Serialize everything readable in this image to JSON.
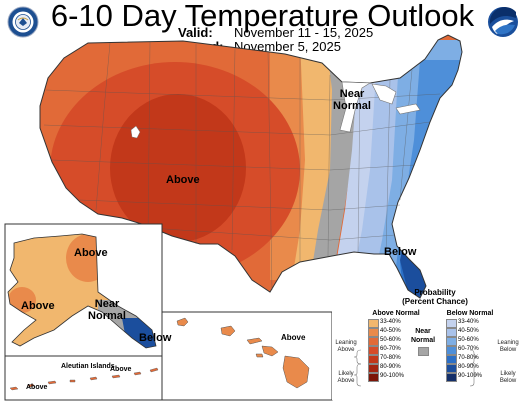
{
  "header": {
    "title": "6-10 Day Temperature Outlook",
    "valid_label": "Valid:",
    "valid_value": "November 11 - 15, 2025",
    "issued_label": "Issued:",
    "issued_value": "November 5, 2025"
  },
  "logos": {
    "left": "us-department-of-commerce-seal",
    "right": "noaa-logo"
  },
  "map_labels": {
    "conus_above": "Above",
    "conus_near_normal": "Near Normal",
    "conus_below": "Below",
    "alaska_above_north": "Above",
    "alaska_above_west": "Above",
    "alaska_near_normal": "Near Normal",
    "alaska_below": "Below",
    "aleutian_islands": "Aleutian Islands",
    "aleutian_above_west": "Above",
    "aleutian_above_east": "Above",
    "hawaii_above": "Above"
  },
  "legend": {
    "title": "Probability",
    "subtitle": "(Percent Chance)",
    "above_header": "Above Normal",
    "near_header": "Near Normal",
    "below_header": "Below Normal",
    "leaning_above": "Leaning Above",
    "likely_above": "Likely Above",
    "leaning_below": "Leaning Below",
    "likely_below": "Likely Below",
    "ranges": [
      "33-40%",
      "40-50%",
      "50-60%",
      "60-70%",
      "70-80%",
      "80-90%",
      "90-100%"
    ],
    "above_colors": [
      "#f1b76e",
      "#e98a4b",
      "#e16a38",
      "#d64c29",
      "#c2381a",
      "#a42511",
      "#7c1508"
    ],
    "near_color": "#a5a5a5",
    "below_colors": [
      "#c4d2ee",
      "#a9c2ea",
      "#7eaee4",
      "#4e8fd9",
      "#2b6fc6",
      "#1b4e9d",
      "#142f69"
    ]
  }
}
